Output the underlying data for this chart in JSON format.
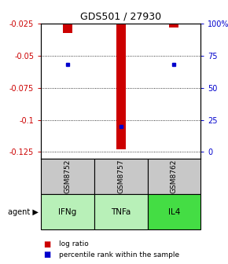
{
  "title": "GDS501 / 27930",
  "samples": [
    "GSM8752",
    "GSM8757",
    "GSM8762"
  ],
  "agents": [
    "IFNg",
    "TNFa",
    "IL4"
  ],
  "log_ratios": [
    -0.032,
    -0.123,
    -0.028
  ],
  "percentile_ranks": [
    68,
    20,
    68
  ],
  "ymax": -0.025,
  "ymin": -0.13,
  "yticks_left": [
    -0.025,
    -0.05,
    -0.075,
    -0.1,
    -0.125
  ],
  "yticks_right_vals": [
    "100%",
    "75",
    "50",
    "25",
    "0"
  ],
  "bar_color": "#cc0000",
  "dot_color": "#0000cc",
  "bar_width": 0.18,
  "left_tick_color": "#cc0000",
  "right_tick_color": "#0000cc",
  "sample_bg": "#c8c8c8",
  "agent_colors": [
    "#b8f0b8",
    "#b8f0b8",
    "#44dd44"
  ],
  "legend_bar_color": "#cc0000",
  "legend_dot_color": "#0000cc"
}
